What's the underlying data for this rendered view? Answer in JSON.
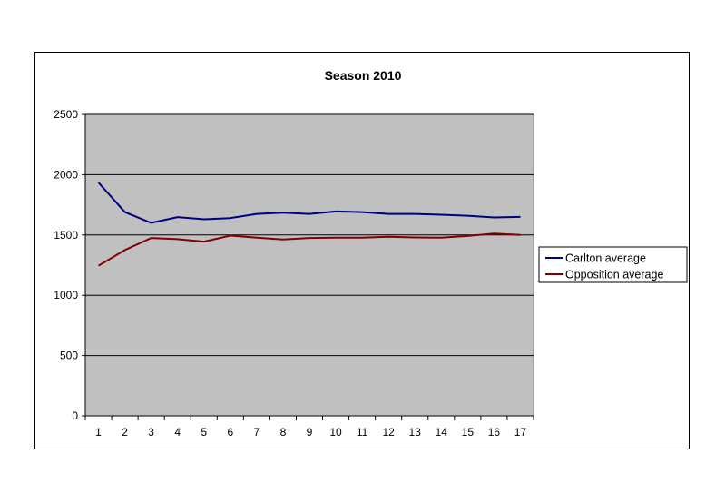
{
  "chart_data": {
    "type": "line",
    "title": "Season 2010",
    "xlabel": "",
    "ylabel": "",
    "categories": [
      "1",
      "2",
      "3",
      "4",
      "5",
      "6",
      "7",
      "8",
      "9",
      "10",
      "11",
      "12",
      "13",
      "14",
      "15",
      "16",
      "17"
    ],
    "ylim": [
      0,
      2500
    ],
    "yticks": [
      "0",
      "500",
      "1000",
      "1500",
      "2000",
      "2500"
    ],
    "grid": true,
    "legend_position": "right",
    "plot_background": "#c0c0c0",
    "series": [
      {
        "name": "Carlton average",
        "color": "#000080",
        "values": [
          1935,
          1690,
          1600,
          1648,
          1630,
          1640,
          1675,
          1685,
          1675,
          1695,
          1690,
          1675,
          1675,
          1668,
          1660,
          1645,
          1650
        ]
      },
      {
        "name": "Opposition average",
        "color": "#800000",
        "values": [
          1245,
          1375,
          1475,
          1465,
          1445,
          1495,
          1478,
          1462,
          1475,
          1478,
          1478,
          1485,
          1480,
          1478,
          1492,
          1512,
          1500
        ]
      }
    ]
  }
}
